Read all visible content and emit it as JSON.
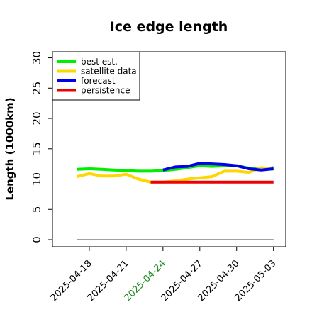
{
  "chart_data": {
    "type": "line",
    "title": "Ice edge length",
    "ylabel": "Length (1000km)",
    "xlabel": "",
    "ylim": [
      0,
      31
    ],
    "xlim": [
      "2025-04-15",
      "2025-05-04"
    ],
    "y_ticks": [
      0,
      5,
      10,
      15,
      20,
      25,
      30
    ],
    "x_ticks": [
      {
        "label": "2025-04-18",
        "date": "2025-04-18",
        "color": "#000000"
      },
      {
        "label": "2025-04-21",
        "date": "2025-04-21",
        "color": "#000000"
      },
      {
        "label": "2025-04-24",
        "date": "2025-04-24",
        "color": "#228b22"
      },
      {
        "label": "2025-04-27",
        "date": "2025-04-27",
        "color": "#000000"
      },
      {
        "label": "2025-04-30",
        "date": "2025-04-30",
        "color": "#000000"
      },
      {
        "label": "2025-05-03",
        "date": "2025-05-03",
        "color": "#000000"
      }
    ],
    "legend_position": "top-left",
    "grid": false,
    "series": [
      {
        "name": "best est.",
        "color": "#00ee00",
        "points": [
          [
            "2025-04-17",
            11.6
          ],
          [
            "2025-04-18",
            11.7
          ],
          [
            "2025-04-19",
            11.6
          ],
          [
            "2025-04-20",
            11.5
          ],
          [
            "2025-04-21",
            11.4
          ],
          [
            "2025-04-22",
            11.3
          ],
          [
            "2025-04-23",
            11.3
          ],
          [
            "2025-04-24",
            11.4
          ],
          [
            "2025-04-25",
            11.6
          ],
          [
            "2025-04-26",
            11.9
          ],
          [
            "2025-04-27",
            12.2
          ],
          [
            "2025-04-28",
            12.1
          ],
          [
            "2025-04-29",
            12.2
          ],
          [
            "2025-04-30",
            12.2
          ],
          [
            "2025-05-01",
            11.8
          ],
          [
            "2025-05-02",
            11.6
          ],
          [
            "2025-05-03",
            11.9
          ]
        ]
      },
      {
        "name": "satellite data",
        "color": "#ffd700",
        "points": [
          [
            "2025-04-17",
            10.4
          ],
          [
            "2025-04-18",
            10.9
          ],
          [
            "2025-04-19",
            10.5
          ],
          [
            "2025-04-20",
            10.5
          ],
          [
            "2025-04-21",
            10.8
          ],
          [
            "2025-04-22",
            10.0
          ],
          [
            "2025-04-23",
            9.5
          ],
          [
            "2025-04-24",
            9.5
          ],
          [
            "2025-04-25",
            9.7
          ],
          [
            "2025-04-26",
            10.0
          ],
          [
            "2025-04-27",
            10.2
          ],
          [
            "2025-04-28",
            10.4
          ],
          [
            "2025-04-29",
            11.3
          ],
          [
            "2025-04-30",
            11.3
          ],
          [
            "2025-05-01",
            11.1
          ],
          [
            "2025-05-02",
            11.9
          ],
          [
            "2025-05-03",
            11.6
          ]
        ]
      },
      {
        "name": "forecast",
        "color": "#0000ee",
        "points": [
          [
            "2025-04-24",
            11.5
          ],
          [
            "2025-04-25",
            12.0
          ],
          [
            "2025-04-26",
            12.1
          ],
          [
            "2025-04-27",
            12.6
          ],
          [
            "2025-04-28",
            12.5
          ],
          [
            "2025-04-29",
            12.4
          ],
          [
            "2025-04-30",
            12.2
          ],
          [
            "2025-05-01",
            11.7
          ],
          [
            "2025-05-02",
            11.5
          ],
          [
            "2025-05-03",
            11.7
          ]
        ]
      },
      {
        "name": "persistence",
        "color": "#ee0000",
        "points": [
          [
            "2025-04-23",
            9.5
          ],
          [
            "2025-05-03",
            9.5
          ]
        ]
      }
    ],
    "reference_line": {
      "color": "#808080",
      "y": 0,
      "from": "2025-04-17",
      "to": "2025-05-03"
    }
  }
}
